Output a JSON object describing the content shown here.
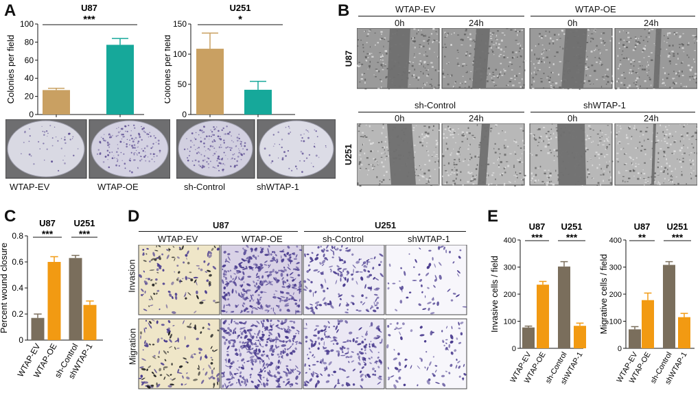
{
  "panels": {
    "A": "A",
    "B": "B",
    "C": "C",
    "D": "D",
    "E": "E"
  },
  "colors": {
    "ev": "#c9a062",
    "oe": "#16a89a",
    "brown": "#7a6e5c",
    "orange": "#f29a12",
    "dish": "#d8d8de",
    "scratch_bg": "#8a8a8a",
    "invasion_yellow": "#efe6c8",
    "stain": "#4b3d8f"
  },
  "panelA": {
    "left_cell_line": "U87",
    "left_sig": "***",
    "right_cell_line": "U251",
    "right_sig": "*",
    "left_photo_labels": [
      "WTAP-EV",
      "WTAP-OE"
    ],
    "right_photo_labels": [
      "sh-Control",
      "shWTAP-1"
    ]
  },
  "panelB": {
    "top_groups": [
      "WTAP-EV",
      "WTAP-OE"
    ],
    "bottom_groups": [
      "sh-Control",
      "shWTAP-1"
    ],
    "times": [
      "0h",
      "24h",
      "0h",
      "24h"
    ],
    "row_labels": [
      "U87",
      "U251"
    ]
  },
  "panelD": {
    "groups": [
      "U87",
      "U251"
    ],
    "columns": [
      "WTAP-EV",
      "WTAP-OE",
      "sh-Control",
      "shWTAP-1"
    ],
    "rows": [
      "Invasion",
      "Migration"
    ]
  },
  "chart_data": [
    {
      "id": "A-U87",
      "type": "bar",
      "title": "U87",
      "significance": "***",
      "ylabel": "Colonies per field",
      "categories": [
        "WTAP-EV",
        "WTAP-OE"
      ],
      "values": [
        27,
        77
      ],
      "errors": [
        2,
        7
      ],
      "ylim": [
        0,
        100
      ],
      "yticks": [
        0,
        20,
        40,
        60,
        80,
        100
      ]
    },
    {
      "id": "A-U251",
      "type": "bar",
      "title": "U251",
      "significance": "*",
      "ylabel": "Colonies per field",
      "categories": [
        "sh-Control",
        "shWTAP-1"
      ],
      "values": [
        109,
        41
      ],
      "errors": [
        26,
        14
      ],
      "ylim": [
        0,
        150
      ],
      "yticks": [
        0,
        50,
        100,
        150
      ]
    },
    {
      "id": "C",
      "type": "bar",
      "groups": [
        {
          "name": "U87",
          "significance": "***"
        },
        {
          "name": "U251",
          "significance": "***"
        }
      ],
      "ylabel": "Percent wound closure",
      "categories": [
        "WTAP-EV",
        "WTAP-OE",
        "sh-Control",
        "shWTAP-1"
      ],
      "values": [
        0.17,
        0.6,
        0.63,
        0.27
      ],
      "errors": [
        0.03,
        0.04,
        0.02,
        0.03
      ],
      "ylim": [
        0,
        0.8
      ],
      "yticks": [
        "0",
        "0.2",
        "0.4",
        "0.6",
        "0.8"
      ]
    },
    {
      "id": "E-inv",
      "type": "bar",
      "groups": [
        {
          "name": "U87",
          "significance": "***"
        },
        {
          "name": "U251",
          "significance": "***"
        }
      ],
      "ylabel": "Invasive cells / field",
      "categories": [
        "WTAP-EV",
        "WTAP-OE",
        "sh-Control",
        "shWTAP-1"
      ],
      "values": [
        77,
        235,
        302,
        83
      ],
      "errors": [
        5,
        12,
        18,
        10
      ],
      "ylim": [
        0,
        400
      ],
      "yticks": [
        0,
        100,
        200,
        300,
        400
      ]
    },
    {
      "id": "E-mig",
      "type": "bar",
      "groups": [
        {
          "name": "U87",
          "significance": "**"
        },
        {
          "name": "U251",
          "significance": "***"
        }
      ],
      "ylabel": "Migrative cells / field",
      "categories": [
        "WTAP-EV",
        "WTAP-OE",
        "sh-Control",
        "shWTAP-1"
      ],
      "values": [
        70,
        178,
        308,
        115
      ],
      "errors": [
        10,
        26,
        12,
        14
      ],
      "ylim": [
        0,
        400
      ],
      "yticks": [
        0,
        100,
        200,
        300,
        400
      ]
    }
  ]
}
